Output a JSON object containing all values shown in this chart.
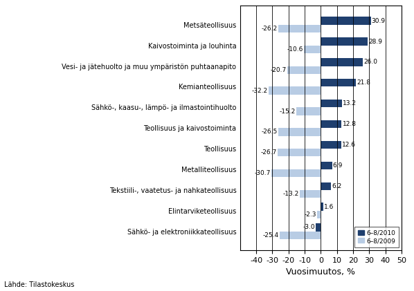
{
  "categories": [
    "Metsäteollisuus",
    "Kaivostoiminta ja louhinta",
    "Vesi- ja jätehuolto ja muu ympäristön puhtaanapito",
    "Kemianteollisuus",
    "Sähkö-, kaasu-, lämpö- ja ilmastointihuolto",
    "Teollisuus ja kaivostoiminta",
    "Teollisuus",
    "Metalliteollisuus",
    "Tekstiili-, vaatetus- ja nahkateollisuus",
    "Elintarviketeollisuus",
    "Sähkö- ja elektroniikkateollisuus"
  ],
  "values_2010": [
    30.9,
    28.9,
    26.0,
    21.8,
    13.2,
    12.8,
    12.6,
    6.9,
    6.2,
    1.6,
    -3.0
  ],
  "values_2009": [
    -26.2,
    -10.6,
    -20.7,
    -32.2,
    -15.2,
    -26.5,
    -26.7,
    -30.7,
    -13.2,
    -2.3,
    -25.4
  ],
  "color_2010": "#1F3F6E",
  "color_2009": "#B8CCE4",
  "xlim": [
    -50,
    50
  ],
  "xticks": [
    -40,
    -30,
    -20,
    -10,
    0,
    10,
    20,
    30,
    40,
    50
  ],
  "xlabel": "Vuosimuutos, %",
  "legend_2010": "6–8/2010",
  "legend_2009": "6–8/2009",
  "source": "Lähde: Tilastokeskus",
  "bar_height": 0.38,
  "figure_width": 5.98,
  "figure_height": 4.21,
  "dpi": 100
}
